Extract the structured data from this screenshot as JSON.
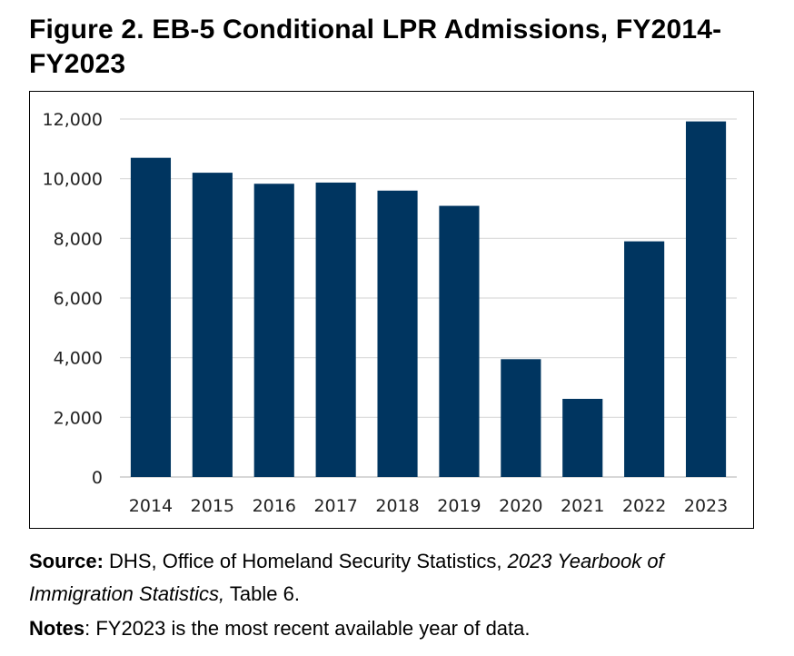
{
  "figure_title": "Figure 2. EB-5 Conditional LPR Admissions, FY2014-FY2023",
  "source": {
    "label": "Source:",
    "text_before": "DHS, Office of Homeland Security Statistics,",
    "italic_title": "2023 Yearbook of Immigration Statistics,",
    "text_after": "Table 6."
  },
  "notes": {
    "label": "Notes",
    "text": ": FY2023 is the most recent available year of data."
  },
  "colors": {
    "bar": "#003560",
    "grid": "#d9d9d9",
    "axis": "#bfbfbf"
  },
  "chart_data": {
    "type": "bar",
    "title": "",
    "xlabel": "",
    "ylabel": "",
    "categories": [
      "2014",
      "2015",
      "2016",
      "2017",
      "2018",
      "2019",
      "2020",
      "2021",
      "2022",
      "2023"
    ],
    "values": [
      10700,
      10200,
      9830,
      9870,
      9600,
      9090,
      3950,
      2620,
      7900,
      11920
    ],
    "ylim": [
      0,
      12000
    ],
    "yticks": [
      0,
      2000,
      4000,
      6000,
      8000,
      10000,
      12000
    ],
    "ytick_labels": [
      "0",
      "2,000",
      "4,000",
      "6,000",
      "8,000",
      "10,000",
      "12,000"
    ],
    "grid": true,
    "legend": "none"
  }
}
